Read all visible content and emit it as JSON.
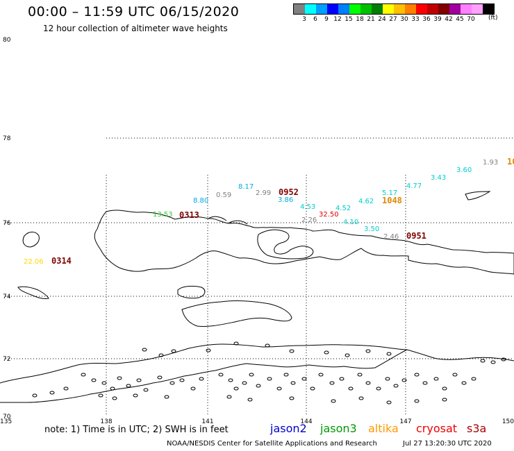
{
  "header": {
    "title": "00:00 – 11:59 UTC 06/15/2020",
    "subtitle": "12 hour collection of altimeter wave heights"
  },
  "legend": {
    "colors": [
      "#808080",
      "#00ffff",
      "#00a0ff",
      "#0000ff",
      "#0080ff",
      "#00ff00",
      "#00c000",
      "#008000",
      "#ffff00",
      "#ffc000",
      "#ff8000",
      "#ff0000",
      "#c00000",
      "#800000",
      "#a000a0",
      "#ff80ff",
      "#ffa0ff",
      "#000000"
    ],
    "labels": [
      "3",
      "6",
      "9",
      "12",
      "15",
      "18",
      "21",
      "24",
      "27",
      "30",
      "33",
      "36",
      "39",
      "42",
      "45",
      "70"
    ],
    "unit": "(ft)"
  },
  "map": {
    "lat_labels": [
      {
        "label": "80",
        "lat": 80
      },
      {
        "label": "78",
        "lat": 78
      },
      {
        "label": "76",
        "lat": 76
      },
      {
        "label": "74",
        "lat": 74
      },
      {
        "label": "72",
        "lat": 72
      },
      {
        "label": "70",
        "lat": 70
      }
    ],
    "lon_labels": [
      {
        "label": "135",
        "lon": 135
      },
      {
        "label": "138",
        "lon": 138
      },
      {
        "label": "141",
        "lon": 141
      },
      {
        "label": "144",
        "lon": 144
      },
      {
        "label": "147",
        "lon": 147
      },
      {
        "label": "150",
        "lon": 150
      }
    ],
    "wave_values": [
      {
        "text": "22.06",
        "color": "#ffd700"
      },
      {
        "text": "13.53",
        "color": "#33cc33"
      },
      {
        "text": "8.80",
        "color": "#00aadd"
      },
      {
        "text": "0.59",
        "color": "#808080"
      },
      {
        "text": "8.17",
        "color": "#00aadd"
      },
      {
        "text": "2.99",
        "color": "#808080"
      },
      {
        "text": "3.86",
        "color": "#00aadd"
      },
      {
        "text": "4.53",
        "color": "#00cccc"
      },
      {
        "text": "2.26",
        "color": "#808080"
      },
      {
        "text": "32.50",
        "color": "#dd0000"
      },
      {
        "text": "4.52",
        "color": "#00cccc"
      },
      {
        "text": "4.10",
        "color": "#00cccc"
      },
      {
        "text": "4.62",
        "color": "#00cccc"
      },
      {
        "text": "3.50",
        "color": "#00cccc"
      },
      {
        "text": "5.17",
        "color": "#00cccc"
      },
      {
        "text": "2.46",
        "color": "#808080"
      },
      {
        "text": "4.77",
        "color": "#00cccc"
      },
      {
        "text": "3.43",
        "color": "#00cccc"
      },
      {
        "text": "3.60",
        "color": "#00cccc"
      },
      {
        "text": "1.93",
        "color": "#808080"
      }
    ],
    "pass_times": [
      {
        "text": "0314",
        "color": "#800000"
      },
      {
        "text": "0313",
        "color": "#800000"
      },
      {
        "text": "0952",
        "color": "#800000"
      },
      {
        "text": "0951",
        "color": "#800000"
      },
      {
        "text": "1048",
        "color": "#e08800"
      },
      {
        "text": "10",
        "color": "#e08800"
      }
    ]
  },
  "footer": {
    "note": "note:  1) Time is in UTC;  2) SWH is in feet",
    "satellites": [
      {
        "name": "jason2",
        "color": "#0000cc"
      },
      {
        "name": "jason3",
        "color": "#009900"
      },
      {
        "name": "altika",
        "color": "#ff9900"
      },
      {
        "name": "cryosat",
        "color": "#ee0000"
      },
      {
        "name": "s3a",
        "color": "#aa0000"
      }
    ],
    "credit": "NOAA/NESDIS Center for Satellite Applications and Research",
    "timestamp": "Jul 27 13:20:30 UTC 2020"
  }
}
